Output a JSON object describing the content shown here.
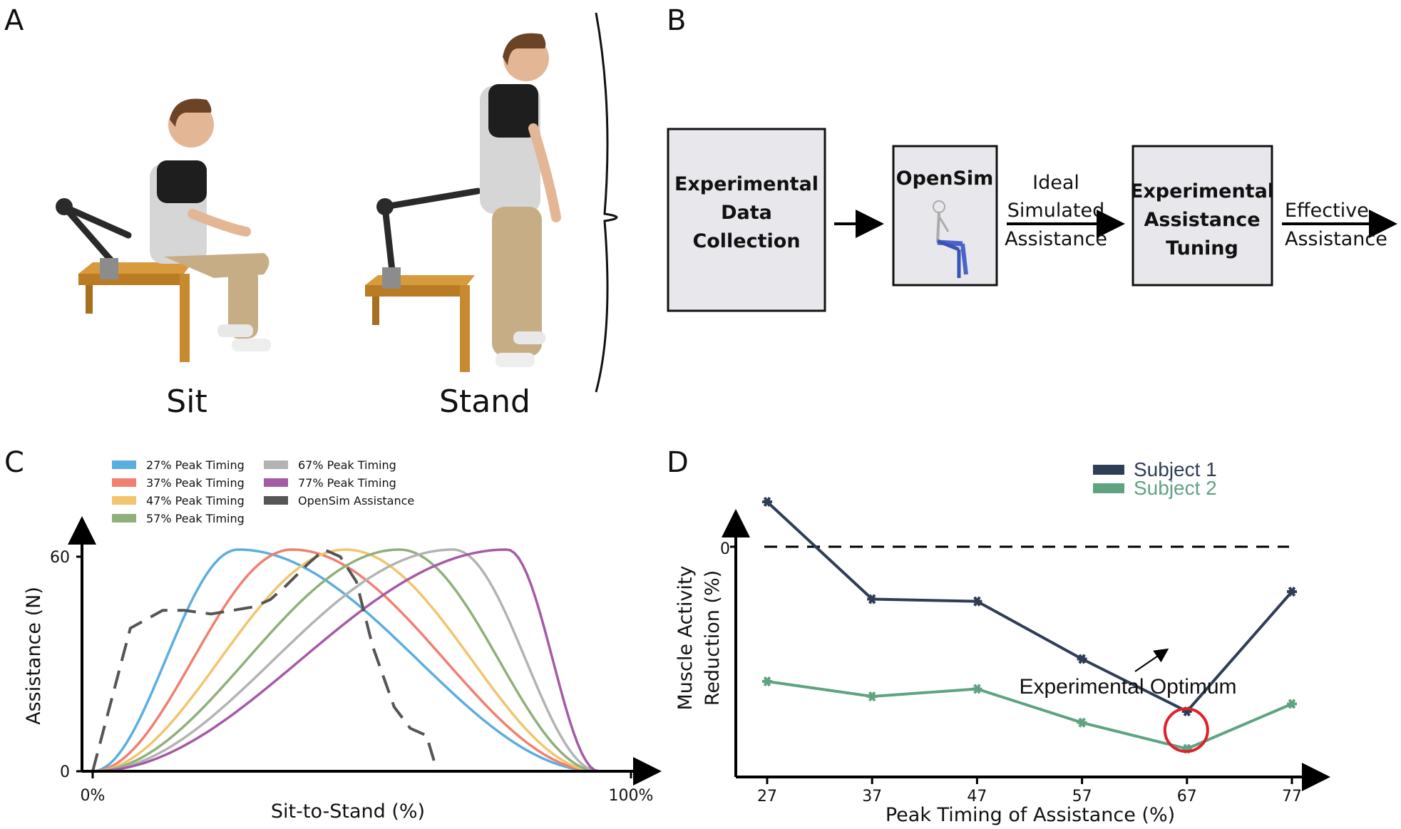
{
  "panels": {
    "a": "A",
    "b": "B",
    "c": "C",
    "d": "D"
  },
  "panel_a": {
    "sit_label": "Sit",
    "stand_label": "Stand"
  },
  "panel_b": {
    "box1": [
      "Experimental",
      "Data",
      "Collection"
    ],
    "box2": "OpenSim",
    "arrow1_text": [
      "Ideal",
      "Simulated",
      "Assistance"
    ],
    "box3": [
      "Experimental",
      "Assistance",
      "Tuning"
    ],
    "arrow2_text": [
      "Effective",
      "Assistance"
    ]
  },
  "chart_data": [
    {
      "type": "line",
      "panel": "C",
      "xlabel": "Sit-to-Stand (%)",
      "ylabel": "Assistance (N)",
      "x_ticks": [
        "0%",
        "100%"
      ],
      "y_ticks": [
        "0",
        "60"
      ],
      "xlim": [
        0,
        100
      ],
      "ylim": [
        0,
        60
      ],
      "legend_position": "top",
      "series": [
        {
          "name": "27% Peak Timing",
          "color": "#5aaee0",
          "peak_x": 27,
          "peak_y": 62,
          "end_x": 94
        },
        {
          "name": "37% Peak Timing",
          "color": "#f08070",
          "peak_x": 37,
          "peak_y": 62,
          "end_x": 94
        },
        {
          "name": "47% Peak Timing",
          "color": "#f2c46e",
          "peak_x": 47,
          "peak_y": 62,
          "end_x": 94
        },
        {
          "name": "57% Peak Timing",
          "color": "#8fb07a",
          "peak_x": 57,
          "peak_y": 62,
          "end_x": 94
        },
        {
          "name": "67% Peak Timing",
          "color": "#b3b3b3",
          "peak_x": 67,
          "peak_y": 62,
          "end_x": 94
        },
        {
          "name": "77% Peak Timing",
          "color": "#a55aa5",
          "peak_x": 77,
          "peak_y": 62,
          "end_x": 94
        },
        {
          "name": "OpenSim Assistance",
          "color": "#555555",
          "dashed": true,
          "x": [
            0,
            7,
            13,
            17,
            22,
            26,
            30,
            33,
            36,
            40,
            43,
            46,
            49,
            52,
            56,
            59,
            62,
            64,
            100
          ],
          "y": [
            0,
            40,
            45,
            45,
            44,
            45,
            46,
            48,
            52,
            58,
            62,
            60,
            53,
            35,
            18,
            12,
            10,
            0,
            0
          ]
        }
      ]
    },
    {
      "type": "line",
      "panel": "D",
      "xlabel": "Peak Timing of Assistance (%)",
      "ylabel": "Muscle Activity Reduction (%)",
      "categories": [
        "27",
        "37",
        "47",
        "57",
        "67",
        "77"
      ],
      "y_ticks": [
        "0"
      ],
      "legend_position": "top-right",
      "series": [
        {
          "name": "Subject 1",
          "color": "#2f3d57",
          "values": [
            6,
            -7,
            -7.3,
            -15,
            -22,
            -6
          ]
        },
        {
          "name": "Subject 2",
          "color": "#5fa381",
          "values": [
            -18,
            -20,
            -19,
            -23.5,
            -27,
            -21
          ]
        }
      ],
      "annotation": {
        "text": "Experimental Optimum",
        "x": "67",
        "y": -27
      }
    }
  ]
}
